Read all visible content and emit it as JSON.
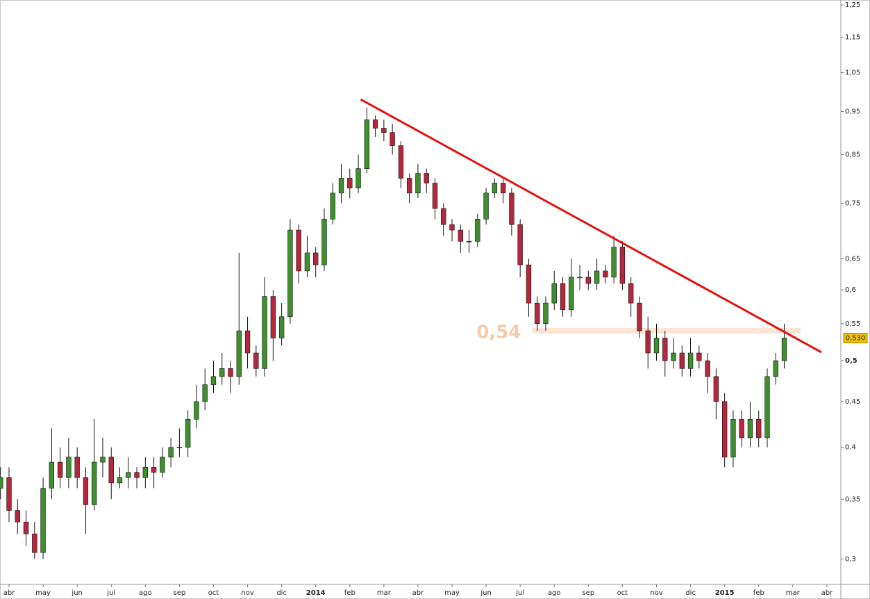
{
  "chart_data": {
    "type": "candlestick",
    "x": [
      -0.25,
      0,
      0.25,
      0.5,
      0.75,
      1,
      1.25,
      1.5,
      1.75,
      2,
      2.25,
      2.5,
      2.75,
      3,
      3.25,
      3.5,
      3.75,
      4,
      4.25,
      4.5,
      4.75,
      5,
      5.25,
      5.5,
      5.75,
      6,
      6.25,
      6.5,
      6.75,
      7,
      7.25,
      7.5,
      7.75,
      8,
      8.25,
      8.5,
      8.75,
      9,
      9.25,
      9.5,
      9.75,
      10,
      10.25,
      10.5,
      10.75,
      11,
      11.25,
      11.5,
      11.75,
      12,
      12.25,
      12.5,
      12.75,
      13,
      13.25,
      13.5,
      13.75,
      14,
      14.25,
      14.5,
      14.75,
      15,
      15.25,
      15.5,
      15.75,
      16,
      16.25,
      16.5,
      16.75,
      17,
      17.25,
      17.5,
      17.75,
      18,
      18.25,
      18.5,
      18.75,
      19,
      19.25,
      19.5,
      19.75,
      20,
      20.25,
      20.5,
      20.75,
      21,
      21.25,
      21.5,
      21.75,
      22,
      22.25,
      22.5,
      22.75
    ],
    "open": [
      0.36,
      0.37,
      0.34,
      0.33,
      0.32,
      0.305,
      0.36,
      0.385,
      0.37,
      0.39,
      0.37,
      0.345,
      0.385,
      0.39,
      0.365,
      0.37,
      0.375,
      0.37,
      0.38,
      0.375,
      0.39,
      0.4,
      0.4,
      0.43,
      0.45,
      0.47,
      0.48,
      0.49,
      0.48,
      0.54,
      0.51,
      0.49,
      0.59,
      0.53,
      0.56,
      0.7,
      0.63,
      0.66,
      0.64,
      0.72,
      0.77,
      0.8,
      0.78,
      0.82,
      0.93,
      0.91,
      0.9,
      0.87,
      0.8,
      0.77,
      0.81,
      0.79,
      0.74,
      0.71,
      0.7,
      0.68,
      0.68,
      0.72,
      0.77,
      0.79,
      0.77,
      0.71,
      0.64,
      0.58,
      0.55,
      0.58,
      0.61,
      0.57,
      0.62,
      0.62,
      0.61,
      0.63,
      0.62,
      0.67,
      0.61,
      0.58,
      0.54,
      0.51,
      0.53,
      0.5,
      0.51,
      0.49,
      0.51,
      0.5,
      0.48,
      0.45,
      0.39,
      0.43,
      0.41,
      0.43,
      0.41,
      0.48,
      0.5
    ],
    "high": [
      0.38,
      0.38,
      0.35,
      0.34,
      0.33,
      0.37,
      0.42,
      0.4,
      0.41,
      0.4,
      0.38,
      0.43,
      0.41,
      0.4,
      0.38,
      0.39,
      0.38,
      0.39,
      0.39,
      0.4,
      0.41,
      0.42,
      0.44,
      0.47,
      0.49,
      0.5,
      0.51,
      0.5,
      0.66,
      0.56,
      0.52,
      0.62,
      0.6,
      0.58,
      0.72,
      0.71,
      0.69,
      0.67,
      0.74,
      0.79,
      0.83,
      0.82,
      0.85,
      0.96,
      0.94,
      0.93,
      0.92,
      0.88,
      0.81,
      0.83,
      0.82,
      0.8,
      0.75,
      0.72,
      0.71,
      0.7,
      0.73,
      0.78,
      0.8,
      0.8,
      0.78,
      0.72,
      0.65,
      0.59,
      0.59,
      0.63,
      0.62,
      0.65,
      0.64,
      0.63,
      0.65,
      0.64,
      0.69,
      0.68,
      0.62,
      0.59,
      0.56,
      0.55,
      0.54,
      0.53,
      0.52,
      0.53,
      0.52,
      0.51,
      0.49,
      0.46,
      0.44,
      0.44,
      0.45,
      0.44,
      0.49,
      0.51,
      0.55
    ],
    "low": [
      0.35,
      0.33,
      0.32,
      0.31,
      0.3,
      0.3,
      0.35,
      0.36,
      0.36,
      0.36,
      0.32,
      0.34,
      0.37,
      0.35,
      0.36,
      0.36,
      0.36,
      0.36,
      0.36,
      0.37,
      0.38,
      0.39,
      0.39,
      0.42,
      0.44,
      0.46,
      0.47,
      0.46,
      0.47,
      0.49,
      0.48,
      0.48,
      0.5,
      0.52,
      0.55,
      0.61,
      0.62,
      0.62,
      0.63,
      0.71,
      0.75,
      0.76,
      0.77,
      0.81,
      0.89,
      0.88,
      0.85,
      0.78,
      0.75,
      0.76,
      0.77,
      0.72,
      0.69,
      0.68,
      0.66,
      0.66,
      0.67,
      0.71,
      0.76,
      0.75,
      0.69,
      0.62,
      0.56,
      0.54,
      0.54,
      0.57,
      0.56,
      0.56,
      0.6,
      0.6,
      0.6,
      0.61,
      0.61,
      0.6,
      0.56,
      0.53,
      0.49,
      0.5,
      0.48,
      0.49,
      0.48,
      0.48,
      0.49,
      0.46,
      0.43,
      0.38,
      0.38,
      0.4,
      0.4,
      0.4,
      0.4,
      0.47,
      0.49
    ],
    "close": [
      0.37,
      0.34,
      0.33,
      0.32,
      0.305,
      0.36,
      0.385,
      0.37,
      0.39,
      0.37,
      0.345,
      0.385,
      0.39,
      0.365,
      0.37,
      0.375,
      0.37,
      0.38,
      0.375,
      0.39,
      0.4,
      0.4,
      0.43,
      0.45,
      0.47,
      0.48,
      0.49,
      0.48,
      0.54,
      0.51,
      0.49,
      0.59,
      0.53,
      0.56,
      0.7,
      0.63,
      0.66,
      0.64,
      0.72,
      0.77,
      0.8,
      0.78,
      0.82,
      0.93,
      0.91,
      0.9,
      0.87,
      0.8,
      0.77,
      0.81,
      0.79,
      0.74,
      0.71,
      0.7,
      0.68,
      0.68,
      0.72,
      0.77,
      0.79,
      0.77,
      0.71,
      0.64,
      0.58,
      0.55,
      0.58,
      0.61,
      0.57,
      0.62,
      0.62,
      0.61,
      0.63,
      0.62,
      0.67,
      0.61,
      0.58,
      0.54,
      0.51,
      0.53,
      0.5,
      0.51,
      0.49,
      0.51,
      0.5,
      0.48,
      0.45,
      0.39,
      0.43,
      0.41,
      0.43,
      0.41,
      0.48,
      0.5,
      0.53
    ],
    "up_color": "#3f8f2f",
    "down_color": "#b5283c",
    "log_scale": true,
    "xlim": [
      -0.265,
      24.41
    ],
    "xticks": [
      {
        "value": 0,
        "label": "abr"
      },
      {
        "value": 1,
        "label": "may"
      },
      {
        "value": 2,
        "label": "jun"
      },
      {
        "value": 3,
        "label": "jul"
      },
      {
        "value": 4,
        "label": "ago"
      },
      {
        "value": 5,
        "label": "sep"
      },
      {
        "value": 6,
        "label": "oct"
      },
      {
        "value": 7,
        "label": "nov"
      },
      {
        "value": 8,
        "label": "dic"
      },
      {
        "value": 9,
        "label": "2014"
      },
      {
        "value": 10,
        "label": "feb"
      },
      {
        "value": 11,
        "label": "mar"
      },
      {
        "value": 12,
        "label": "abr"
      },
      {
        "value": 13,
        "label": "may"
      },
      {
        "value": 14,
        "label": "jun"
      },
      {
        "value": 15,
        "label": "jul"
      },
      {
        "value": 16,
        "label": "ago"
      },
      {
        "value": 17,
        "label": "sep"
      },
      {
        "value": 18,
        "label": "oct"
      },
      {
        "value": 19,
        "label": "nov"
      },
      {
        "value": 20,
        "label": "dic"
      },
      {
        "value": 21,
        "label": "2015"
      },
      {
        "value": 22,
        "label": "feb"
      },
      {
        "value": 23,
        "label": "mar"
      },
      {
        "value": 24,
        "label": "abr"
      }
    ],
    "ylim": [
      0.281,
      1.266
    ],
    "yticks": [
      {
        "value": 0.3,
        "label": "0,3"
      },
      {
        "value": 0.35,
        "label": "0,35"
      },
      {
        "value": 0.4,
        "label": "0,4"
      },
      {
        "value": 0.45,
        "label": "0,45"
      },
      {
        "value": 0.5,
        "label": "0,5"
      },
      {
        "value": 0.55,
        "label": "0,55"
      },
      {
        "value": 0.6,
        "label": "0,6"
      },
      {
        "value": 0.65,
        "label": "0,65"
      },
      {
        "value": 0.75,
        "label": "0,75"
      },
      {
        "value": 0.85,
        "label": "0,85"
      },
      {
        "value": 0.95,
        "label": "0,95"
      },
      {
        "value": 1.05,
        "label": "1,05"
      },
      {
        "value": 1.15,
        "label": "1,15"
      },
      {
        "value": 1.25,
        "label": "1,25"
      }
    ],
    "trendline": {
      "x": [
        10.32,
        23.84
      ],
      "values": [
        0.98,
        0.511
      ],
      "color": "#e51010"
    },
    "support": {
      "x": [
        15.35,
        23.23
      ],
      "value": 0.54,
      "label": "0,54",
      "color": "#fde3d2",
      "label_color": "#f7c9a6"
    },
    "last_price": {
      "value": 0.53,
      "label": "0,530",
      "color": "#f2c200"
    }
  }
}
